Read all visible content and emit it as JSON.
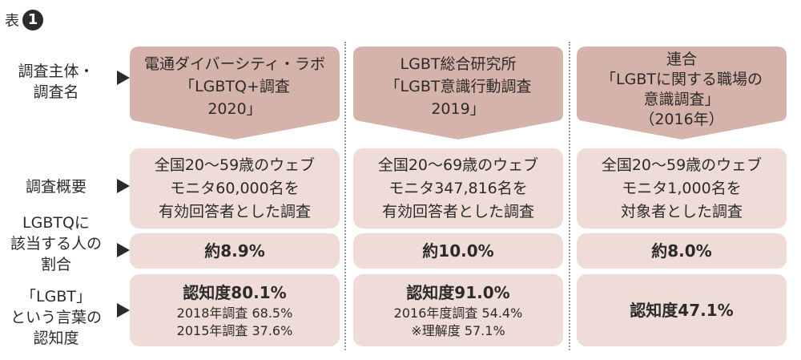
{
  "title": {
    "label": "表",
    "number": "1"
  },
  "row_labels": {
    "organization": "調査主体・\n調査名",
    "overview": "調査概要",
    "ratio": "LGBTQに\n該当する人の\n割合",
    "awareness": "「LGBT」\nという言葉の\n認知度"
  },
  "columns": [
    {
      "header": [
        "電通ダイバーシティ・ラボ",
        "「LGBTQ+調査",
        "2020」"
      ],
      "overview": [
        "全国20〜59歳のウェブ",
        "モニタ60,000名を",
        "有効回答者とした調査"
      ],
      "ratio": "約8.9%",
      "awareness_main": "認知度80.1%",
      "awareness_sub": [
        "2018年調査 68.5%",
        "2015年調査 37.6%"
      ]
    },
    {
      "header": [
        "LGBT総合研究所",
        "「LGBT意識行動調査",
        "2019」"
      ],
      "overview": [
        "全国20〜69歳のウェブ",
        "モニタ347,816名を",
        "有効回答者とした調査"
      ],
      "ratio": "約10.0%",
      "awareness_main": "認知度91.0%",
      "awareness_sub": [
        "2016年度調査 54.4%",
        "※理解度 57.1%"
      ]
    },
    {
      "header": [
        "連合",
        "「LGBTに関する職場の",
        "意識調査」",
        "（2016年）"
      ],
      "overview": [
        "全国20〜59歳のウェブ",
        "モニタ1,000名を",
        "対象者とした調査"
      ],
      "ratio": "約8.0%",
      "awareness_main": "認知度47.1%",
      "awareness_sub": []
    }
  ],
  "colors": {
    "box_fill": "#efdcd7",
    "header_fill": "#d6b3aa",
    "text": "#2b2b2b"
  }
}
